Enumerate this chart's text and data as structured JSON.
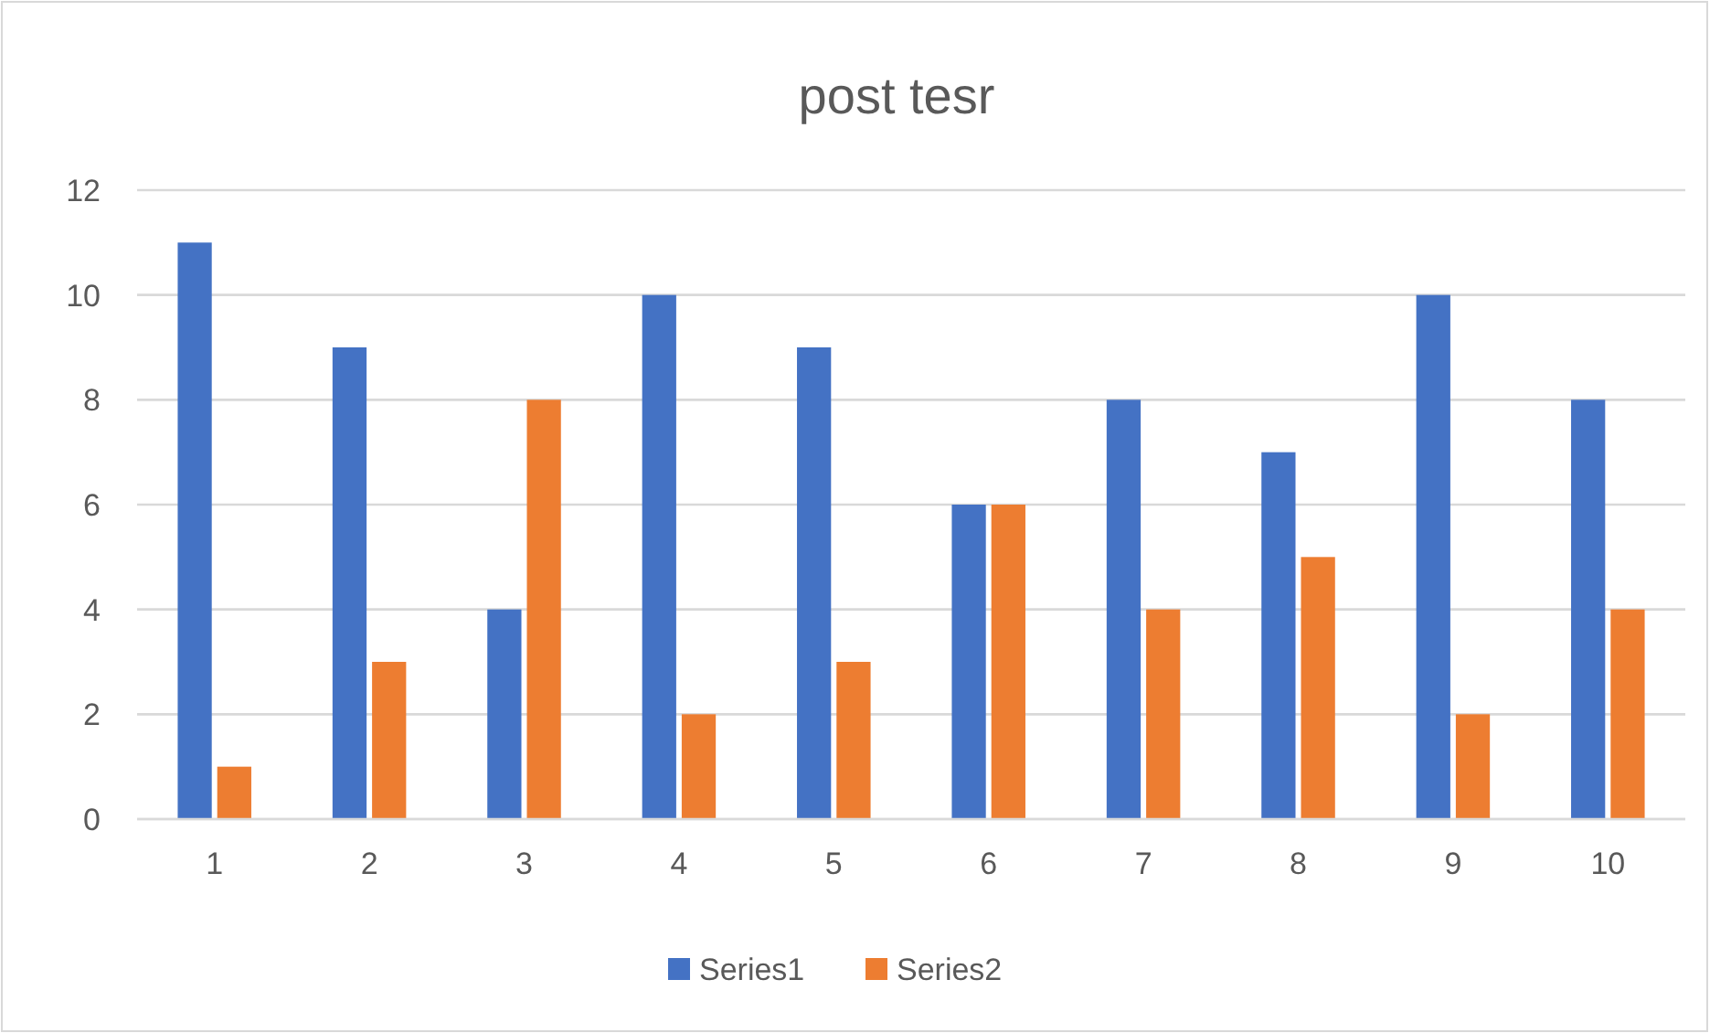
{
  "chart_data": {
    "type": "bar",
    "title": "post tesr",
    "categories": [
      "1",
      "2",
      "3",
      "4",
      "5",
      "6",
      "7",
      "8",
      "9",
      "10"
    ],
    "series": [
      {
        "name": "Series1",
        "color": "#4472c4",
        "values": [
          11,
          9,
          4,
          10,
          9,
          6,
          8,
          7,
          10,
          8
        ]
      },
      {
        "name": "Series2",
        "color": "#ed7d31",
        "values": [
          1,
          3,
          8,
          2,
          3,
          6,
          4,
          5,
          2,
          4
        ]
      }
    ],
    "ylim": [
      0,
      12
    ],
    "yticks": [
      0,
      2,
      4,
      6,
      8,
      10,
      12
    ],
    "grid": "y",
    "legend": "bottom"
  }
}
